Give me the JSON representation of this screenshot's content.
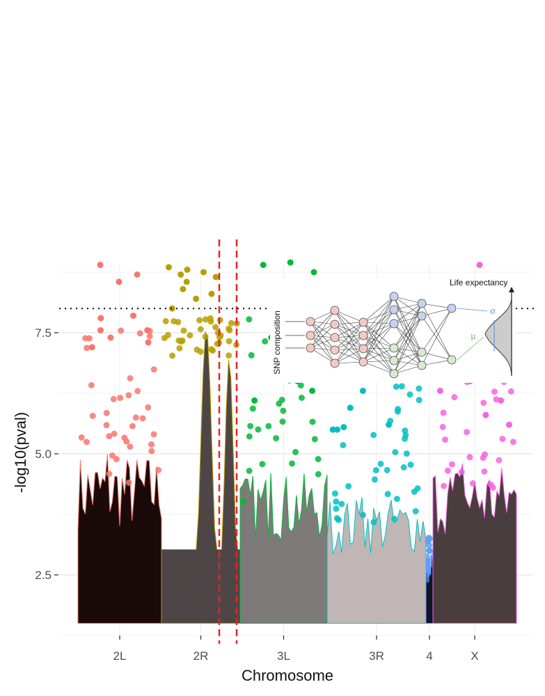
{
  "chart_data": {
    "type": "scatter",
    "title": "",
    "xlabel": "Chromosome",
    "ylabel": "-log10(pval)",
    "ylim": [
      1.3,
      9.0
    ],
    "yticks": [
      2.5,
      5.0,
      7.5
    ],
    "ytick_labels": [
      "2.5",
      "5.0",
      "7.5"
    ],
    "grid": true,
    "threshold": 8.0,
    "highlight_region_chromosome": "2R",
    "chromosomes": [
      {
        "name": "2L",
        "color": "#f8766d",
        "max_background": 5.0,
        "max_snp": 8.9,
        "top_snps": [
          8.9,
          8.7,
          8.55,
          7.85,
          7.8,
          7.55,
          7.55,
          7.4,
          7.3,
          7.2
        ]
      },
      {
        "name": "2R",
        "color": "#b79f00",
        "max_background": 7.6,
        "max_snp": 8.85,
        "top_snps": [
          8.85,
          8.8,
          8.75,
          8.7,
          8.65,
          8.55,
          8.4,
          8.3,
          8.2,
          8.0
        ]
      },
      {
        "name": "3L",
        "color": "#00ba38",
        "max_background": 4.6,
        "max_snp": 8.95,
        "top_snps": [
          8.95,
          8.9,
          8.75,
          8.0,
          7.4,
          6.5,
          6.3,
          6.1
        ]
      },
      {
        "name": "3R",
        "color": "#00bfc4",
        "max_background": 4.1,
        "max_snp": 6.3,
        "top_snps": [
          6.3,
          5.95,
          5.6,
          5.55,
          5.5,
          5.5
        ]
      },
      {
        "name": "4",
        "color": "#619cff",
        "max_background": 3.0,
        "max_snp": 3.2,
        "top_snps": [
          3.2,
          3.0
        ]
      },
      {
        "name": "X",
        "color": "#f564e3",
        "max_background": 4.8,
        "max_snp": 8.9,
        "top_snps": [
          8.9,
          6.5,
          6.3,
          6.1,
          5.8,
          5.6
        ]
      }
    ],
    "inset": {
      "input_label": "SNP composition",
      "output_label": "Life expectancy",
      "symbols": [
        "σ",
        "μ"
      ]
    }
  }
}
